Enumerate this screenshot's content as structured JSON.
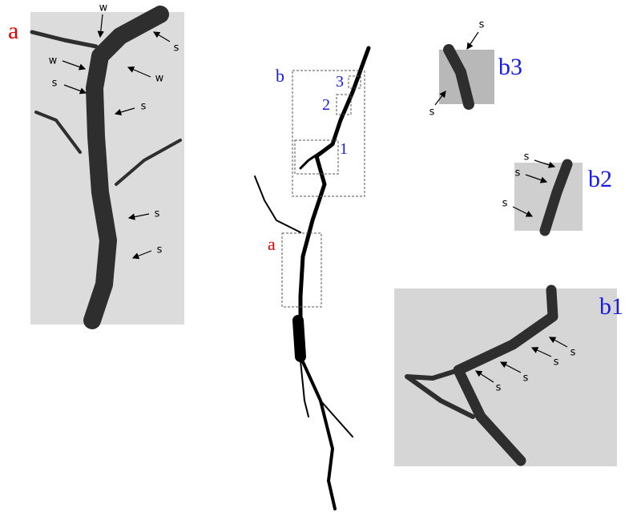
{
  "panel_a": {
    "label": "a",
    "annotations": [
      "w",
      "s",
      "w",
      "w",
      "s",
      "s",
      "s",
      "s"
    ]
  },
  "overview": {
    "labels": [
      "b",
      "3",
      "2",
      "1",
      "a"
    ]
  },
  "panel_b3": {
    "label": "b3",
    "annotations": [
      "s",
      "s"
    ]
  },
  "panel_b2": {
    "label": "b2",
    "annotations": [
      "s",
      "s",
      "s"
    ]
  },
  "panel_b1": {
    "label": "b1",
    "annotations": [
      "s",
      "s",
      "s",
      "s"
    ]
  }
}
